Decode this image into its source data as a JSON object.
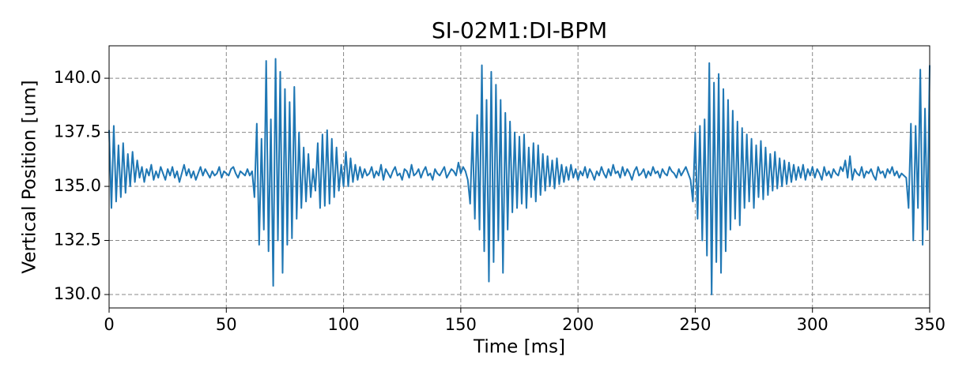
{
  "chart_data": {
    "type": "line",
    "title": "SI-02M1:DI-BPM",
    "x_label": "Time [ms]",
    "y_label": "Vertical Position [um]",
    "xlim": [
      0,
      350
    ],
    "ylim": [
      129.38,
      141.5
    ],
    "xticks": [
      0,
      50,
      100,
      150,
      200,
      250,
      300,
      350
    ],
    "yticks": [
      {
        "value": 130,
        "label": "130.0"
      },
      132.5,
      {
        "value": 135,
        "label": "135.0"
      },
      137.5,
      {
        "value": 140,
        "label": "140.0"
      }
    ],
    "grid": true,
    "x": [
      0,
      1,
      2,
      3,
      4,
      5,
      6,
      7,
      8,
      9,
      10,
      11,
      12,
      13,
      14,
      15,
      16,
      17,
      18,
      19,
      20,
      21,
      22,
      23,
      24,
      25,
      26,
      27,
      28,
      29,
      30,
      31,
      32,
      33,
      34,
      35,
      36,
      37,
      38,
      39,
      40,
      41,
      42,
      43,
      44,
      45,
      46,
      47,
      48,
      49,
      50,
      51,
      52,
      53,
      54,
      55,
      56,
      57,
      58,
      59,
      60,
      61,
      62,
      63,
      64,
      65,
      66,
      67,
      68,
      69,
      70,
      71,
      72,
      73,
      74,
      75,
      76,
      77,
      78,
      79,
      80,
      81,
      82,
      83,
      84,
      85,
      86,
      87,
      88,
      89,
      90,
      91,
      92,
      93,
      94,
      95,
      96,
      97,
      98,
      99,
      100,
      101,
      102,
      103,
      104,
      105,
      106,
      107,
      108,
      109,
      110,
      111,
      112,
      113,
      114,
      115,
      116,
      117,
      118,
      119,
      120,
      121,
      122,
      123,
      124,
      125,
      126,
      127,
      128,
      129,
      130,
      131,
      132,
      133,
      134,
      135,
      136,
      137,
      138,
      139,
      140,
      141,
      142,
      143,
      144,
      145,
      146,
      147,
      148,
      149,
      150,
      151,
      152,
      153,
      154,
      155,
      156,
      157,
      158,
      159,
      160,
      161,
      162,
      163,
      164,
      165,
      166,
      167,
      168,
      169,
      170,
      171,
      172,
      173,
      174,
      175,
      176,
      177,
      178,
      179,
      180,
      181,
      182,
      183,
      184,
      185,
      186,
      187,
      188,
      189,
      190,
      191,
      192,
      193,
      194,
      195,
      196,
      197,
      198,
      199,
      200,
      201,
      202,
      203,
      204,
      205,
      206,
      207,
      208,
      209,
      210,
      211,
      212,
      213,
      214,
      215,
      216,
      217,
      218,
      219,
      220,
      221,
      222,
      223,
      224,
      225,
      226,
      227,
      228,
      229,
      230,
      231,
      232,
      233,
      234,
      235,
      236,
      237,
      238,
      239,
      240,
      241,
      242,
      243,
      244,
      245,
      246,
      247,
      248,
      249,
      250,
      251,
      252,
      253,
      254,
      255,
      256,
      257,
      258,
      259,
      260,
      261,
      262,
      263,
      264,
      265,
      266,
      267,
      268,
      269,
      270,
      271,
      272,
      273,
      274,
      275,
      276,
      277,
      278,
      279,
      280,
      281,
      282,
      283,
      284,
      285,
      286,
      287,
      288,
      289,
      290,
      291,
      292,
      293,
      294,
      295,
      296,
      297,
      298,
      299,
      300,
      301,
      302,
      303,
      304,
      305,
      306,
      307,
      308,
      309,
      310,
      311,
      312,
      313,
      314,
      315,
      316,
      317,
      318,
      319,
      320,
      321,
      322,
      323,
      324,
      325,
      326,
      327,
      328,
      329,
      330,
      331,
      332,
      333,
      334,
      335,
      336,
      337,
      338,
      339,
      340,
      341,
      342,
      343,
      344,
      345,
      346,
      347,
      348,
      349,
      350
    ],
    "series": [
      {
        "color": "#1f77b4",
        "values": [
          137.6,
          134.0,
          137.8,
          134.3,
          136.9,
          134.5,
          137.0,
          134.7,
          136.5,
          135.0,
          136.6,
          135.2,
          136.2,
          135.4,
          135.9,
          135.2,
          135.8,
          135.5,
          136.0,
          135.3,
          135.7,
          135.4,
          135.9,
          135.6,
          135.3,
          135.8,
          135.5,
          135.9,
          135.4,
          135.7,
          135.2,
          135.6,
          136.0,
          135.5,
          135.8,
          135.4,
          135.7,
          135.3,
          135.6,
          135.9,
          135.5,
          135.8,
          135.6,
          135.4,
          135.7,
          135.5,
          135.6,
          135.9,
          135.4,
          135.7,
          135.6,
          135.5,
          135.8,
          135.9,
          135.6,
          135.4,
          135.7,
          135.6,
          135.5,
          135.8,
          135.5,
          135.7,
          134.5,
          137.9,
          132.3,
          137.2,
          133.0,
          140.8,
          132.0,
          138.1,
          130.4,
          140.9,
          132.5,
          140.3,
          131.0,
          139.5,
          132.3,
          138.9,
          132.6,
          139.6,
          133.5,
          137.5,
          134.0,
          136.8,
          134.3,
          136.5,
          134.5,
          135.8,
          134.8,
          137.0,
          134.0,
          137.4,
          134.1,
          137.6,
          134.2,
          137.2,
          134.5,
          136.8,
          134.8,
          136.0,
          135.0,
          136.6,
          135.0,
          136.3,
          135.2,
          136.0,
          135.3,
          135.9,
          135.4,
          135.8,
          135.5,
          135.6,
          135.9,
          135.4,
          135.7,
          135.5,
          136.0,
          135.3,
          135.8,
          135.6,
          135.4,
          135.7,
          135.9,
          135.5,
          135.6,
          135.3,
          135.8,
          135.7,
          135.4,
          136.0,
          135.5,
          135.6,
          135.8,
          135.4,
          135.7,
          135.9,
          135.5,
          135.6,
          135.3,
          135.8,
          135.6,
          135.5,
          135.7,
          135.9,
          135.4,
          135.6,
          135.8,
          135.7,
          135.5,
          136.1,
          135.6,
          135.9,
          135.7,
          135.3,
          134.2,
          137.5,
          133.5,
          138.3,
          133.0,
          140.6,
          132.0,
          139.0,
          130.6,
          140.3,
          131.5,
          139.7,
          132.5,
          139.0,
          131.0,
          138.4,
          133.0,
          138.0,
          133.8,
          137.5,
          134.0,
          137.3,
          134.2,
          137.4,
          134.0,
          136.8,
          134.5,
          137.0,
          134.3,
          136.9,
          134.6,
          136.5,
          134.8,
          136.4,
          135.0,
          136.2,
          134.9,
          136.3,
          135.1,
          136.0,
          135.2,
          135.9,
          135.3,
          136.0,
          135.4,
          135.8,
          135.3,
          135.7,
          135.5,
          135.9,
          135.4,
          135.8,
          135.6,
          135.3,
          135.7,
          135.5,
          135.9,
          135.6,
          135.4,
          135.8,
          135.5,
          136.0,
          135.6,
          135.7,
          135.4,
          135.9,
          135.5,
          135.8,
          135.6,
          135.3,
          135.7,
          135.9,
          135.5,
          135.6,
          135.8,
          135.4,
          135.7,
          135.5,
          135.9,
          135.6,
          135.7,
          135.4,
          135.8,
          135.6,
          135.5,
          135.9,
          135.7,
          135.6,
          135.4,
          135.8,
          135.5,
          135.7,
          135.9,
          135.6,
          135.3,
          134.3,
          137.5,
          133.5,
          137.8,
          132.5,
          138.1,
          131.8,
          140.7,
          130.0,
          139.8,
          131.5,
          140.2,
          131.0,
          139.5,
          132.0,
          139.0,
          133.0,
          138.5,
          133.5,
          138.0,
          133.2,
          137.7,
          134.0,
          137.4,
          134.3,
          137.2,
          134.0,
          136.9,
          134.5,
          137.1,
          134.4,
          136.8,
          134.6,
          136.5,
          134.8,
          136.6,
          134.9,
          136.3,
          135.0,
          136.2,
          135.1,
          136.1,
          135.2,
          136.0,
          135.3,
          135.9,
          135.4,
          136.0,
          135.3,
          135.8,
          135.5,
          135.9,
          135.4,
          135.8,
          135.6,
          135.3,
          135.9,
          135.5,
          135.7,
          135.4,
          135.8,
          135.6,
          135.5,
          135.9,
          135.7,
          136.2,
          135.4,
          136.4,
          135.3,
          135.8,
          135.6,
          135.5,
          135.9,
          135.4,
          135.7,
          135.6,
          135.8,
          135.5,
          135.3,
          135.9,
          135.6,
          135.7,
          135.4,
          135.8,
          135.6,
          135.9,
          135.5,
          135.7,
          135.4,
          135.6,
          135.5,
          135.4,
          134.0,
          137.9,
          132.5,
          137.8,
          134.0,
          140.4,
          132.3,
          138.6,
          133.0,
          140.6
        ]
      }
    ]
  }
}
